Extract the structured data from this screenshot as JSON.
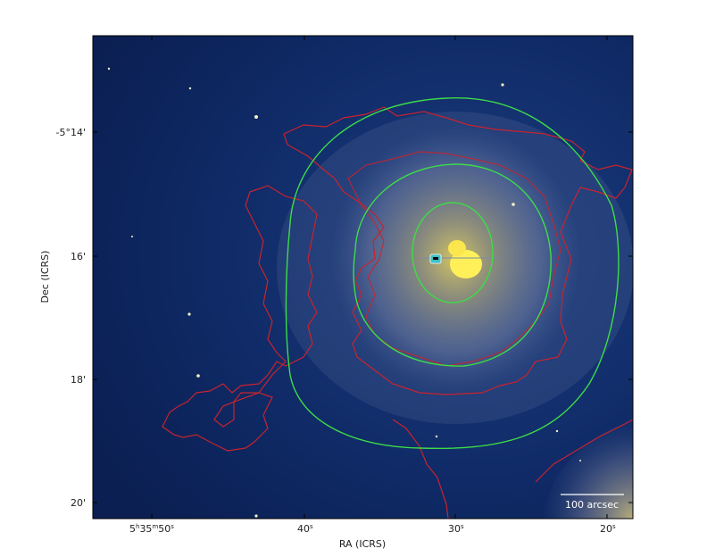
{
  "figure": {
    "xlabel": "RA (ICRS)",
    "ylabel": "Dec (ICRS)",
    "x_ticks": [
      {
        "main": "5",
        "sup1": "h",
        "mid": "35",
        "sup2": "m",
        "sec": "50",
        "sup3": "s"
      },
      {
        "main": "40",
        "sup1": "s"
      },
      {
        "main": "30",
        "sup1": "s"
      },
      {
        "main": "20",
        "sup1": "s"
      }
    ],
    "y_ticks": [
      "-5°14'",
      "16'",
      "18'",
      "20'"
    ],
    "scale_bar_label": "100 arcsec"
  },
  "colors": {
    "background": "#0e2660",
    "contour_green": "#3ddc48",
    "contour_red": "#c8232e",
    "nebula_core": "#f6e04a"
  }
}
